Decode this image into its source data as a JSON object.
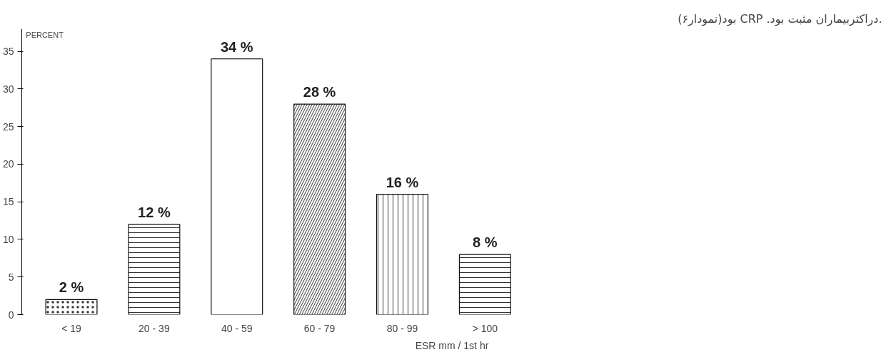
{
  "chart_data": {
    "type": "bar",
    "categories": [
      "< 19",
      "20 - 39",
      "40 - 59",
      "60 - 79",
      "80 - 99",
      "> 100"
    ],
    "values": [
      2,
      12,
      34,
      28,
      16,
      8
    ],
    "value_labels": [
      "2 %",
      "12 %",
      "34 %",
      "28 %",
      "16 %",
      "8 %"
    ],
    "colors": [
      "#ffffff",
      "#ffffff",
      "#ffffff",
      "#ffffff",
      "#ffffff",
      "#ffffff"
    ],
    "ylabel": "PERCENT",
    "xlabel": "ESR mm / 1st hr",
    "ylim": [
      0,
      38
    ],
    "yticks": [
      0,
      5,
      10,
      15,
      20,
      25,
      30,
      35
    ],
    "grid": false,
    "annotations": [
      "بود(نمودار۶) CRP .دراکثربیماران مثبت بود."
    ]
  }
}
